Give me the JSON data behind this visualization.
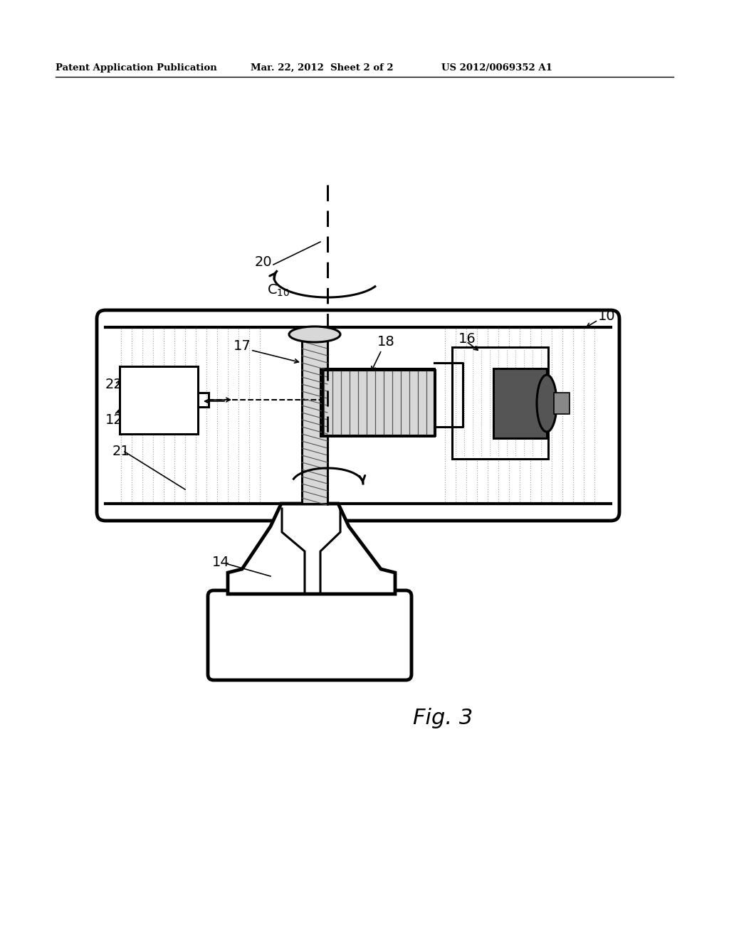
{
  "bg_color": "#ffffff",
  "line_color": "#000000",
  "header_left": "Patent Application Publication",
  "header_mid": "Mar. 22, 2012  Sheet 2 of 2",
  "header_right": "US 2012/0069352 A1",
  "fig_label": "Fig. 3",
  "lw_thick": 3.5,
  "lw_med": 2.2,
  "lw_thin": 1.2,
  "hatch_color": "#777777",
  "gray_dark": "#555555",
  "gray_med": "#888888",
  "gray_light": "#bbbbbb",
  "gray_fill": "#d8d8d8"
}
